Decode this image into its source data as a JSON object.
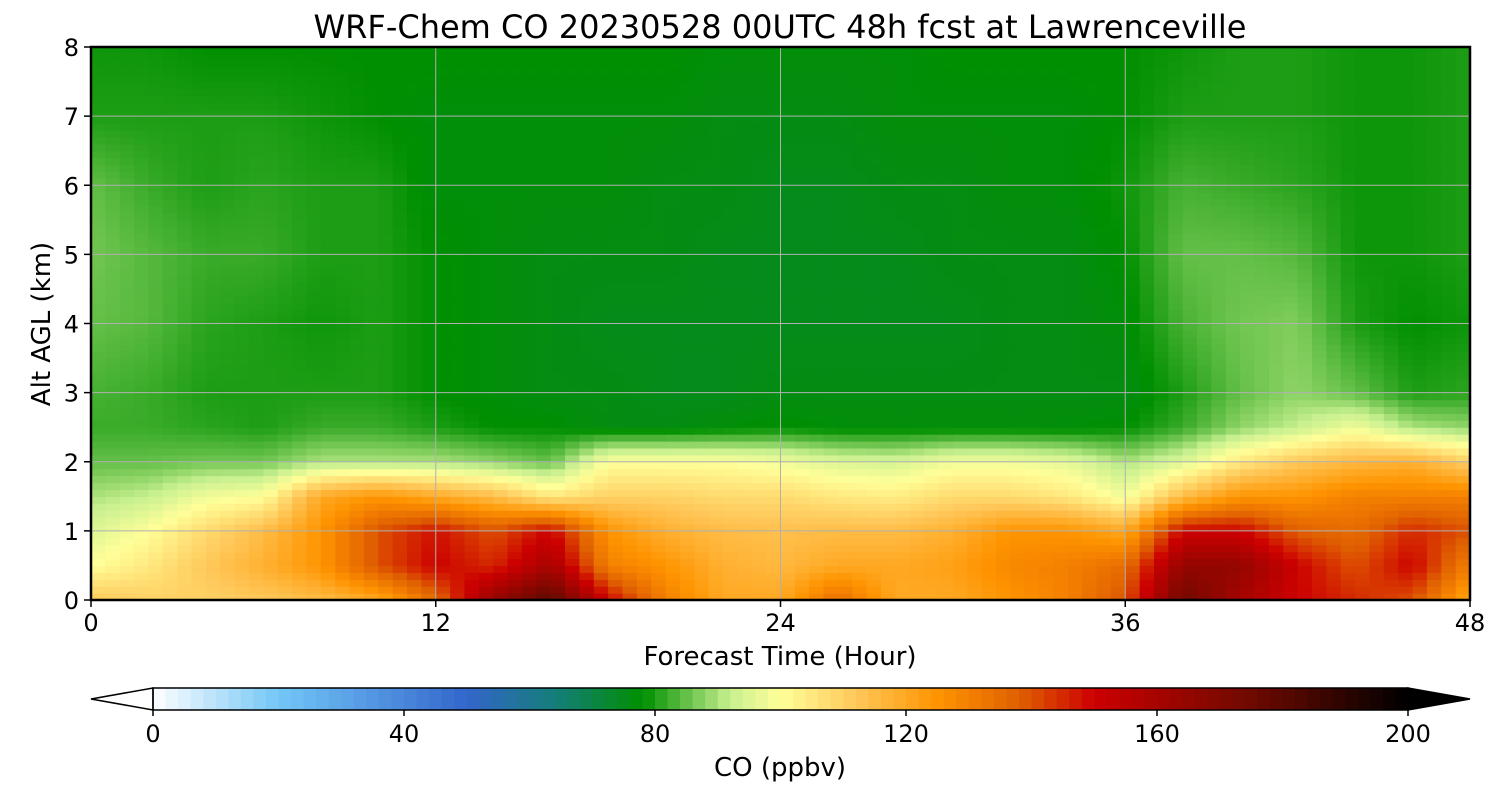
{
  "chart_data": {
    "type": "heatmap",
    "title": "WRF-Chem CO  20230528 00UTC 48h fcst at Lawrenceville",
    "xlabel": "Forecast Time (Hour)",
    "ylabel": "Alt AGL (km)",
    "xlim": [
      0,
      48
    ],
    "ylim": [
      0,
      8
    ],
    "x_ticks": [
      0,
      12,
      24,
      36,
      48
    ],
    "y_ticks": [
      0,
      1,
      2,
      3,
      4,
      5,
      6,
      7,
      8
    ],
    "grid": true,
    "x": [
      0,
      2,
      4,
      6,
      8,
      10,
      12,
      14,
      16,
      18,
      20,
      22,
      24,
      26,
      28,
      30,
      32,
      34,
      36,
      38,
      40,
      42,
      44,
      46,
      48
    ],
    "y": [
      0,
      0.5,
      1,
      1.5,
      2,
      2.5,
      3,
      4,
      5,
      6,
      7,
      8
    ],
    "z": [
      [
        112,
        110,
        110,
        112,
        115,
        120,
        135,
        165,
        180,
        150,
        130,
        120,
        120,
        135,
        120,
        120,
        125,
        130,
        140,
        175,
        160,
        150,
        145,
        140,
        120
      ],
      [
        100,
        105,
        112,
        118,
        125,
        140,
        150,
        145,
        160,
        130,
        125,
        118,
        116,
        120,
        120,
        122,
        128,
        130,
        135,
        165,
        165,
        150,
        140,
        150,
        130
      ],
      [
        95,
        100,
        108,
        115,
        125,
        140,
        148,
        140,
        150,
        125,
        118,
        115,
        114,
        115,
        115,
        118,
        125,
        125,
        120,
        150,
        150,
        138,
        135,
        145,
        140
      ],
      [
        90,
        92,
        98,
        100,
        120,
        125,
        120,
        115,
        105,
        110,
        110,
        108,
        108,
        105,
        104,
        108,
        108,
        105,
        98,
        115,
        125,
        125,
        130,
        130,
        130
      ],
      [
        85,
        85,
        86,
        86,
        90,
        90,
        90,
        88,
        85,
        100,
        100,
        100,
        98,
        95,
        94,
        98,
        98,
        96,
        90,
        95,
        105,
        112,
        116,
        118,
        110
      ],
      [
        82,
        82,
        81,
        80,
        82,
        82,
        80,
        78,
        78,
        76,
        76,
        77,
        78,
        77,
        77,
        77,
        77,
        77,
        78,
        82,
        88,
        92,
        98,
        90,
        88
      ],
      [
        83,
        82,
        80,
        80,
        80,
        80,
        78,
        77,
        76,
        76,
        75,
        75,
        76,
        76,
        76,
        76,
        76,
        76,
        76,
        80,
        85,
        88,
        85,
        80,
        81
      ],
      [
        85,
        84,
        81,
        80,
        79,
        80,
        78,
        77,
        76,
        75,
        75,
        75,
        75,
        75,
        75,
        75,
        76,
        76,
        77,
        83,
        86,
        87,
        80,
        78,
        79
      ],
      [
        86,
        84,
        82,
        82,
        80,
        80,
        78,
        77,
        76,
        76,
        76,
        75,
        75,
        75,
        75,
        76,
        76,
        76,
        78,
        85,
        85,
        84,
        79,
        79,
        80
      ],
      [
        85,
        82,
        80,
        81,
        80,
        80,
        77,
        77,
        77,
        77,
        76,
        76,
        75,
        75,
        76,
        76,
        77,
        77,
        79,
        83,
        82,
        81,
        79,
        79,
        80
      ],
      [
        80,
        80,
        80,
        80,
        79,
        78,
        77,
        77,
        77,
        77,
        77,
        76,
        76,
        76,
        77,
        77,
        77,
        77,
        78,
        80,
        80,
        80,
        79,
        79,
        80
      ],
      [
        79,
        79,
        78,
        78,
        78,
        78,
        78,
        78,
        78,
        78,
        78,
        77,
        77,
        77,
        77,
        78,
        78,
        78,
        78,
        79,
        80,
        80,
        79,
        79,
        80
      ]
    ],
    "colorbar": {
      "label": "CO  (ppbv)",
      "min": 0,
      "max": 200,
      "ticks": [
        0,
        40,
        80,
        120,
        160,
        200
      ],
      "extend": "both",
      "stops": [
        {
          "v": 0,
          "c": "#ffffff"
        },
        {
          "v": 20,
          "c": "#73c6f6"
        },
        {
          "v": 50,
          "c": "#3366cc"
        },
        {
          "v": 65,
          "c": "#137f73"
        },
        {
          "v": 78,
          "c": "#008f00"
        },
        {
          "v": 92,
          "c": "#c8f090"
        },
        {
          "v": 100,
          "c": "#ffff99"
        },
        {
          "v": 112,
          "c": "#ffc85a"
        },
        {
          "v": 125,
          "c": "#ff9400"
        },
        {
          "v": 138,
          "c": "#e06000"
        },
        {
          "v": 150,
          "c": "#cc0000"
        },
        {
          "v": 175,
          "c": "#6e0a00"
        },
        {
          "v": 200,
          "c": "#000000"
        }
      ]
    }
  }
}
